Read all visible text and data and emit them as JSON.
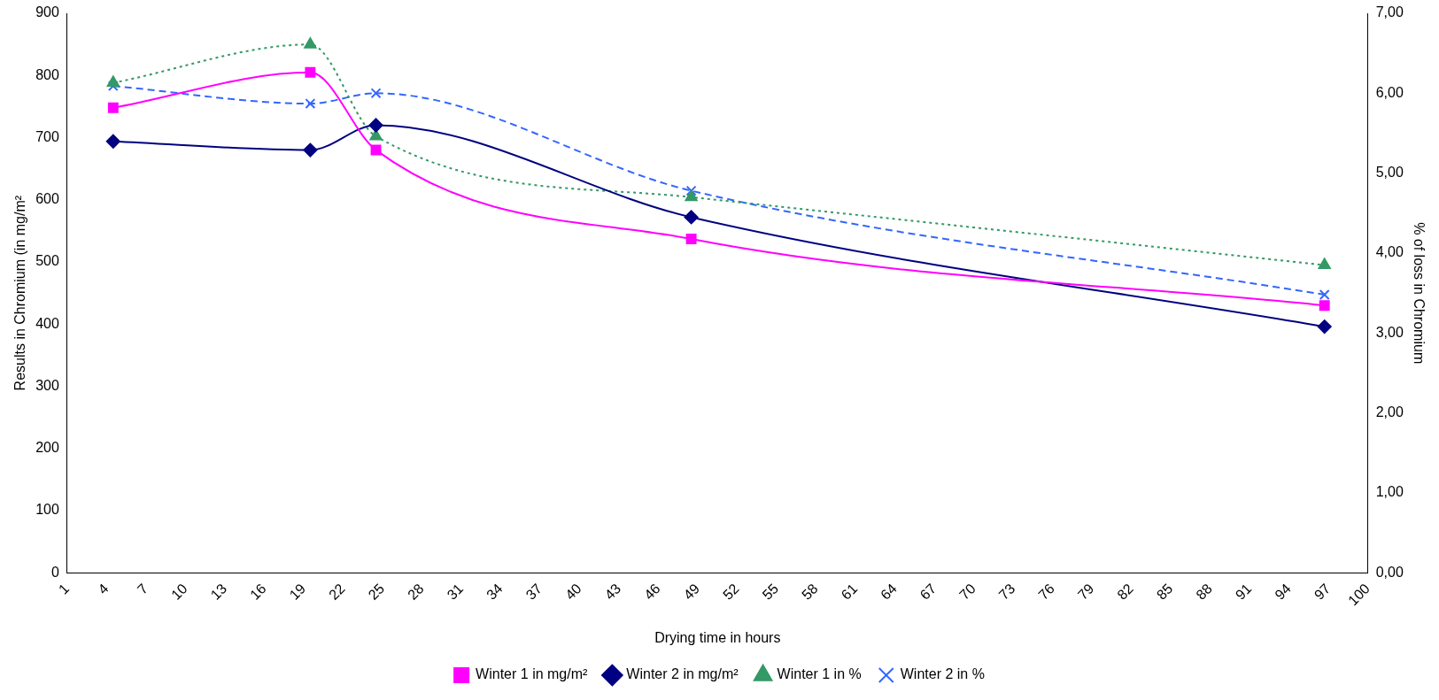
{
  "chart_data": {
    "type": "line",
    "xlabel": "Drying time in hours",
    "ylabel": "Results in Chromium (in mg/m²",
    "y2label": "% of loss in Chromium",
    "xlim": [
      1,
      100
    ],
    "xticks": [
      1,
      4,
      7,
      10,
      13,
      16,
      19,
      22,
      25,
      28,
      31,
      34,
      37,
      40,
      43,
      46,
      49,
      52,
      55,
      58,
      61,
      64,
      67,
      70,
      73,
      76,
      79,
      82,
      85,
      88,
      91,
      94,
      97,
      100
    ],
    "ylim": [
      0,
      900
    ],
    "yticks": [
      0,
      100,
      200,
      300,
      400,
      500,
      600,
      700,
      800,
      900
    ],
    "y2lim": [
      0,
      7
    ],
    "y2ticks": [
      {
        "value": 0,
        "label": "0,00"
      },
      {
        "value": 1,
        "label": "1,00"
      },
      {
        "value": 2,
        "label": "2,00"
      },
      {
        "value": 3,
        "label": "3,00"
      },
      {
        "value": 4,
        "label": "4,00"
      },
      {
        "value": 5,
        "label": "5,00"
      },
      {
        "value": 6,
        "label": "6,00"
      },
      {
        "value": 7,
        "label": "7,00"
      }
    ],
    "x": [
      4.5,
      19.5,
      24.5,
      48.5,
      96.7
    ],
    "legend": "bottom",
    "grid": false,
    "series": [
      {
        "name": "Winter 1 in mg/m²",
        "color": "#ff00ff",
        "marker": "square",
        "line_style": "solid",
        "values": [
          748,
          805,
          680,
          537,
          430
        ]
      },
      {
        "name": "Winter 2 in mg/m²",
        "color": "#000080",
        "marker": "diamond",
        "line_style": "solid",
        "values": [
          694,
          680,
          720,
          572,
          396
        ]
      },
      {
        "name": "Winter 1 in %",
        "color": "#339966",
        "marker": "triangle",
        "line_style": "dotted",
        "axis": "y2",
        "values": [
          6.13,
          6.61,
          5.46,
          4.7,
          3.85
        ]
      },
      {
        "name": "Winter 2 in %",
        "color": "#3366ff",
        "marker": "cross",
        "line_style": "dashed",
        "axis": "y2",
        "values": [
          6.09,
          5.87,
          6.0,
          4.78,
          3.48
        ]
      }
    ]
  }
}
